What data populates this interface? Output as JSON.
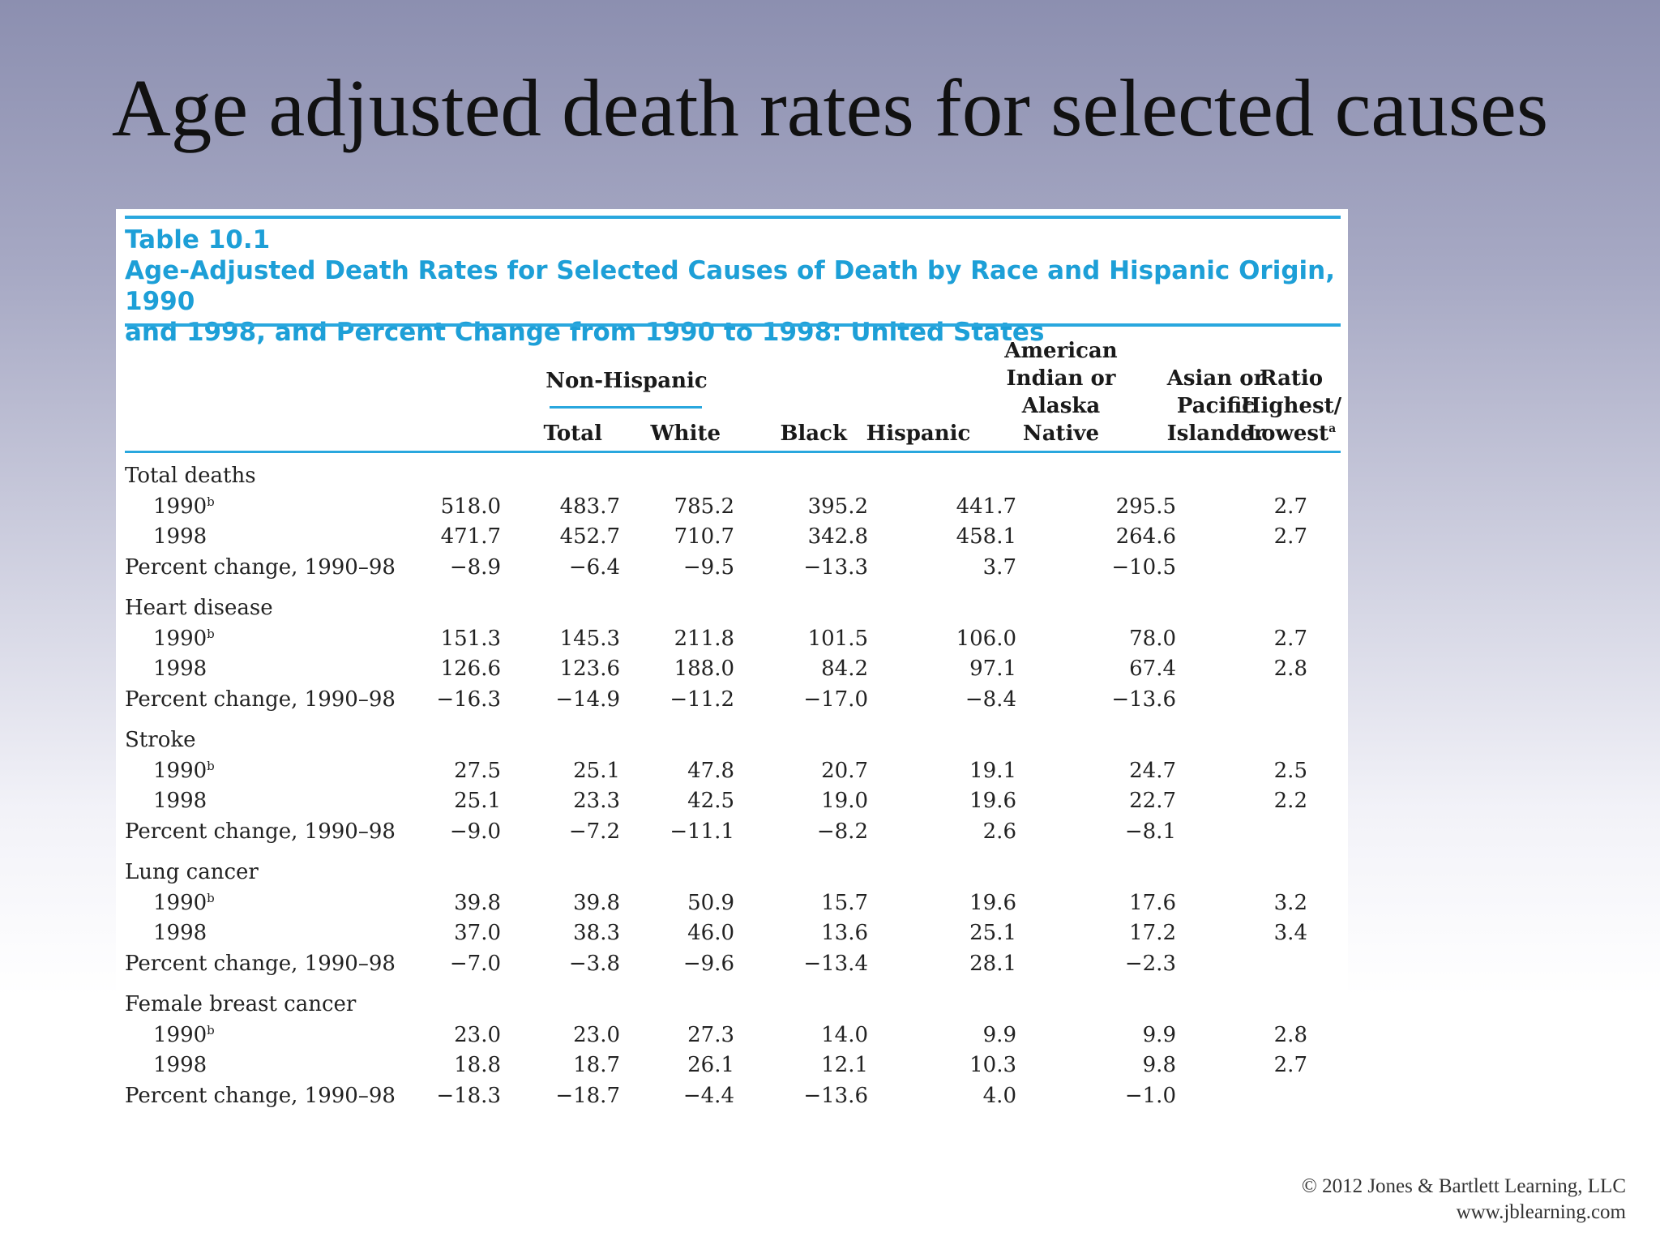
{
  "slide": {
    "title": "Age adjusted death rates for selected causes",
    "copyright": "© 2012 Jones & Bartlett Learning, LLC",
    "website": "www.jblearning.com"
  },
  "table": {
    "number": "Table 10.1",
    "caption_line1": "Age-Adjusted Death Rates for Selected Causes of Death by Race and Hispanic Origin, 1990",
    "caption_line2": "and 1998, and Percent Change from 1990 to 1998: United States",
    "headers": {
      "non_hispanic": "Non-Hispanic",
      "total": "Total",
      "white": "White",
      "black": "Black",
      "hispanic": "Hispanic",
      "american_indian": [
        "American",
        "Indian or",
        "Alaska",
        "Native"
      ],
      "asian": [
        "Asian or",
        "Pacific",
        "Islander"
      ],
      "ratio": [
        "Ratio",
        "Highest/",
        "Lowest"
      ],
      "ratio_footnote": "a"
    },
    "groups": [
      {
        "cause": "Total deaths",
        "rows": [
          {
            "label": "1990",
            "footnote": "b",
            "values": [
              "518.0",
              "483.7",
              "785.2",
              "395.2",
              "441.7",
              "295.5",
              "2.7"
            ]
          },
          {
            "label": "1998",
            "footnote": "",
            "values": [
              "471.7",
              "452.7",
              "710.7",
              "342.8",
              "458.1",
              "264.6",
              "2.7"
            ]
          },
          {
            "label": "Percent change, 1990–98",
            "footnote": "",
            "values": [
              "−8.9",
              "−6.4",
              "−9.5",
              "−13.3",
              "3.7",
              "−10.5",
              ""
            ]
          }
        ]
      },
      {
        "cause": "Heart disease",
        "rows": [
          {
            "label": "1990",
            "footnote": "b",
            "values": [
              "151.3",
              "145.3",
              "211.8",
              "101.5",
              "106.0",
              "78.0",
              "2.7"
            ]
          },
          {
            "label": "1998",
            "footnote": "",
            "values": [
              "126.6",
              "123.6",
              "188.0",
              "84.2",
              "97.1",
              "67.4",
              "2.8"
            ]
          },
          {
            "label": "Percent change, 1990–98",
            "footnote": "",
            "values": [
              "−16.3",
              "−14.9",
              "−11.2",
              "−17.0",
              "−8.4",
              "−13.6",
              ""
            ]
          }
        ]
      },
      {
        "cause": "Stroke",
        "rows": [
          {
            "label": "1990",
            "footnote": "b",
            "values": [
              "27.5",
              "25.1",
              "47.8",
              "20.7",
              "19.1",
              "24.7",
              "2.5"
            ]
          },
          {
            "label": "1998",
            "footnote": "",
            "values": [
              "25.1",
              "23.3",
              "42.5",
              "19.0",
              "19.6",
              "22.7",
              "2.2"
            ]
          },
          {
            "label": "Percent change, 1990–98",
            "footnote": "",
            "values": [
              "−9.0",
              "−7.2",
              "−11.1",
              "−8.2",
              "2.6",
              "−8.1",
              ""
            ]
          }
        ]
      },
      {
        "cause": "Lung cancer",
        "rows": [
          {
            "label": "1990",
            "footnote": "b",
            "values": [
              "39.8",
              "39.8",
              "50.9",
              "15.7",
              "19.6",
              "17.6",
              "3.2"
            ]
          },
          {
            "label": "1998",
            "footnote": "",
            "values": [
              "37.0",
              "38.3",
              "46.0",
              "13.6",
              "25.1",
              "17.2",
              "3.4"
            ]
          },
          {
            "label": "Percent change, 1990–98",
            "footnote": "",
            "values": [
              "−7.0",
              "−3.8",
              "−9.6",
              "−13.4",
              "28.1",
              "−2.3",
              ""
            ]
          }
        ]
      },
      {
        "cause": "Female breast cancer",
        "rows": [
          {
            "label": "1990",
            "footnote": "b",
            "values": [
              "23.0",
              "23.0",
              "27.3",
              "14.0",
              "9.9",
              "9.9",
              "2.8"
            ]
          },
          {
            "label": "1998",
            "footnote": "",
            "values": [
              "18.8",
              "18.7",
              "26.1",
              "12.1",
              "10.3",
              "9.8",
              "2.7"
            ]
          },
          {
            "label": "Percent change, 1990–98",
            "footnote": "",
            "values": [
              "−18.3",
              "−18.7",
              "−4.4",
              "−13.6",
              "4.0",
              "−1.0",
              ""
            ]
          }
        ]
      }
    ]
  }
}
